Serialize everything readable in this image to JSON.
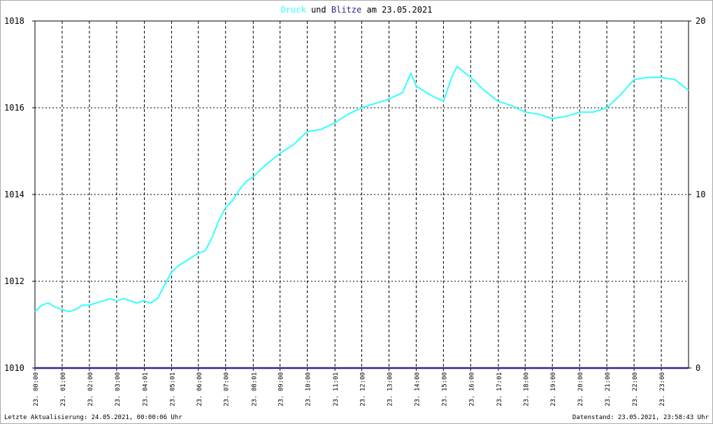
{
  "chart_data": {
    "type": "line",
    "title_joiner": "und",
    "title_suffix": "am 23.05.2021",
    "footer_left": "Letzte Aktualisierung: 24.05.2021, 00:00:06 Uhr",
    "footer_right": "Datenstand: 23.05.2021, 23:58:43 Uhr",
    "xlim": [
      0,
      24
    ],
    "xticks": [
      {
        "value": 0,
        "label": "23. 00:00"
      },
      {
        "value": 1,
        "label": "23. 01:00"
      },
      {
        "value": 2,
        "label": "23. 02:00"
      },
      {
        "value": 3,
        "label": "23. 03:00"
      },
      {
        "value": 4.0167,
        "label": "23. 04:01"
      },
      {
        "value": 5.0167,
        "label": "23. 05:01"
      },
      {
        "value": 6,
        "label": "23. 06:00"
      },
      {
        "value": 7,
        "label": "23. 07:00"
      },
      {
        "value": 8.0167,
        "label": "23. 08:01"
      },
      {
        "value": 9,
        "label": "23. 09:00"
      },
      {
        "value": 10,
        "label": "23. 10:00"
      },
      {
        "value": 11.0167,
        "label": "23. 11:01"
      },
      {
        "value": 12,
        "label": "23. 12:00"
      },
      {
        "value": 13,
        "label": "23. 13:00"
      },
      {
        "value": 14,
        "label": "23. 14:00"
      },
      {
        "value": 15,
        "label": "23. 15:00"
      },
      {
        "value": 16,
        "label": "23. 16:00"
      },
      {
        "value": 17.0167,
        "label": "23. 17:01"
      },
      {
        "value": 18,
        "label": "23. 18:00"
      },
      {
        "value": 19,
        "label": "23. 19:00"
      },
      {
        "value": 20,
        "label": "23. 20:00"
      },
      {
        "value": 21,
        "label": "23. 21:00"
      },
      {
        "value": 22,
        "label": "23. 22:00"
      },
      {
        "value": 23,
        "label": "23. 23:00"
      }
    ],
    "ylim": [
      1010,
      1018
    ],
    "yticks": [
      1010,
      1012,
      1014,
      1016,
      1018
    ],
    "y2lim": [
      0,
      20
    ],
    "y2ticks": [
      0,
      10,
      20
    ],
    "grid": true,
    "series": [
      {
        "name": "Druck",
        "color": "#33ffff",
        "x": [
          0,
          0.25,
          0.5,
          0.75,
          1,
          1.25,
          1.5,
          1.75,
          2,
          2.25,
          2.5,
          2.75,
          3,
          3.25,
          3.5,
          3.75,
          4,
          4.25,
          4.5,
          4.75,
          5,
          5.25,
          5.5,
          5.75,
          6,
          6.25,
          6.5,
          6.75,
          7,
          7.25,
          7.5,
          7.75,
          8,
          8.5,
          9,
          9.5,
          10,
          10.5,
          11,
          11.5,
          12,
          12.5,
          13,
          13.5,
          13.8,
          14,
          14.5,
          15,
          15.3,
          15.5,
          16,
          16.5,
          17,
          17.5,
          18,
          18.5,
          19,
          19.5,
          20,
          20.5,
          21,
          21.5,
          22,
          22.5,
          23,
          23.5,
          24
        ],
        "values": [
          1011.3,
          1011.45,
          1011.5,
          1011.4,
          1011.35,
          1011.3,
          1011.35,
          1011.45,
          1011.45,
          1011.5,
          1011.55,
          1011.6,
          1011.55,
          1011.6,
          1011.55,
          1011.5,
          1011.55,
          1011.5,
          1011.6,
          1011.9,
          1012.2,
          1012.35,
          1012.45,
          1012.55,
          1012.65,
          1012.7,
          1013.0,
          1013.4,
          1013.7,
          1013.85,
          1014.1,
          1014.3,
          1014.4,
          1014.7,
          1014.95,
          1015.15,
          1015.45,
          1015.5,
          1015.65,
          1015.85,
          1016.0,
          1016.1,
          1016.2,
          1016.35,
          1016.8,
          1016.5,
          1016.3,
          1016.15,
          1016.7,
          1016.95,
          1016.7,
          1016.4,
          1016.15,
          1016.05,
          1015.9,
          1015.85,
          1015.75,
          1015.8,
          1015.9,
          1015.9,
          1016.0,
          1016.3,
          1016.65,
          1016.7,
          1016.7,
          1016.65,
          1016.4
        ]
      },
      {
        "name": "Blitze",
        "color": "#2a2a8c",
        "axis": "y2",
        "x": [
          0,
          24
        ],
        "values": [
          0,
          0
        ]
      }
    ]
  }
}
